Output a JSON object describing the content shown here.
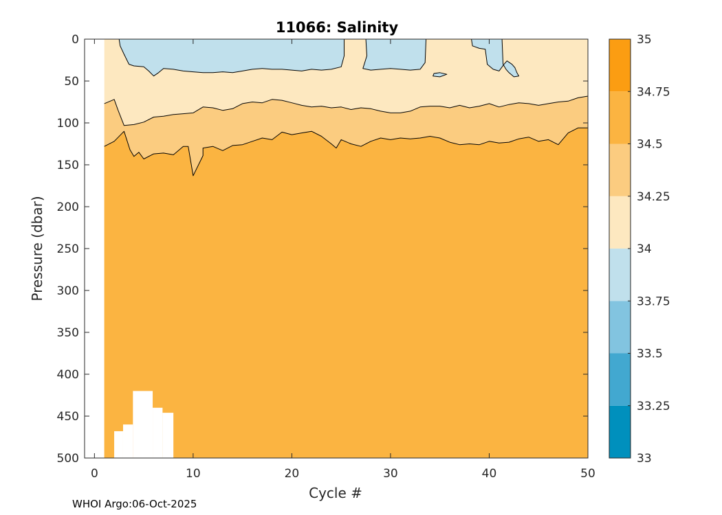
{
  "chart_data": {
    "type": "contour",
    "title": "11066:  Salinity",
    "xlabel": "Cycle #",
    "ylabel": "Pressure (dbar)",
    "xlim": [
      -1,
      50
    ],
    "ylim": [
      500,
      0
    ],
    "x_ticks": [
      0,
      10,
      20,
      30,
      40,
      50
    ],
    "y_ticks": [
      0,
      50,
      100,
      150,
      200,
      250,
      300,
      350,
      400,
      450,
      500
    ],
    "data_x_range": [
      1,
      50
    ],
    "colorbar": {
      "range": [
        33,
        35
      ],
      "ticks": [
        "33",
        "33.25",
        "33.5",
        "33.75",
        "34",
        "34.25",
        "34.5",
        "34.75",
        "35"
      ],
      "bins": [
        {
          "from": 33.0,
          "to": 33.25,
          "color": "#0090bd"
        },
        {
          "from": 33.25,
          "to": 33.5,
          "color": "#42a8d0"
        },
        {
          "from": 33.5,
          "to": 33.75,
          "color": "#82c4e0"
        },
        {
          "from": 33.75,
          "to": 34.0,
          "color": "#c0e0ec"
        },
        {
          "from": 34.0,
          "to": 34.25,
          "color": "#fde8c0"
        },
        {
          "from": 34.25,
          "to": 34.5,
          "color": "#fbcc80"
        },
        {
          "from": 34.5,
          "to": 34.75,
          "color": "#fbb441"
        },
        {
          "from": 34.75,
          "to": 35.0,
          "color": "#fb9d12"
        }
      ]
    },
    "contour_bands": [
      {
        "name": "deep-34.5-34.75",
        "color": "#fbb441",
        "boundary": [
          [
            1,
            128
          ],
          [
            2,
            122
          ],
          [
            3,
            110
          ],
          [
            3.6,
            132
          ],
          [
            4,
            140
          ],
          [
            4.5,
            135
          ],
          [
            5,
            143
          ],
          [
            6,
            137
          ],
          [
            7,
            136
          ],
          [
            8,
            138
          ],
          [
            9,
            128
          ],
          [
            9.5,
            128
          ],
          [
            10,
            163
          ],
          [
            11,
            139
          ],
          [
            11,
            130
          ],
          [
            12,
            128
          ],
          [
            13,
            133
          ],
          [
            14,
            127
          ],
          [
            15,
            126
          ],
          [
            16,
            122
          ],
          [
            17,
            118
          ],
          [
            18,
            120
          ],
          [
            19,
            111
          ],
          [
            20,
            114
          ],
          [
            21,
            112
          ],
          [
            22,
            110
          ],
          [
            23,
            116
          ],
          [
            24,
            125
          ],
          [
            24.5,
            130
          ],
          [
            25,
            120
          ],
          [
            26,
            125
          ],
          [
            27,
            128
          ],
          [
            28,
            122
          ],
          [
            29,
            118
          ],
          [
            30,
            120
          ],
          [
            31,
            118
          ],
          [
            32,
            119
          ],
          [
            33,
            118
          ],
          [
            34,
            116
          ],
          [
            35,
            118
          ],
          [
            36,
            123
          ],
          [
            37,
            126
          ],
          [
            38,
            125
          ],
          [
            39,
            126
          ],
          [
            40,
            122
          ],
          [
            41,
            124
          ],
          [
            42,
            123
          ],
          [
            43,
            119
          ],
          [
            44,
            117
          ],
          [
            45,
            122
          ],
          [
            46,
            120
          ],
          [
            47,
            126
          ],
          [
            48,
            112
          ],
          [
            49,
            106
          ],
          [
            50,
            106
          ]
        ]
      },
      {
        "name": "band-34.25-34.5",
        "color": "#fbcc80",
        "boundary": [
          [
            1,
            77
          ],
          [
            2,
            72
          ],
          [
            2.4,
            85
          ],
          [
            3,
            103
          ],
          [
            4,
            102
          ],
          [
            5,
            99
          ],
          [
            6,
            93
          ],
          [
            7,
            92
          ],
          [
            8,
            90
          ],
          [
            9,
            89
          ],
          [
            10,
            88
          ],
          [
            11,
            81
          ],
          [
            12,
            82
          ],
          [
            13,
            85
          ],
          [
            14,
            83
          ],
          [
            15,
            77
          ],
          [
            16,
            75
          ],
          [
            17,
            76
          ],
          [
            18,
            72
          ],
          [
            19,
            73
          ],
          [
            20,
            76
          ],
          [
            21,
            79
          ],
          [
            22,
            81
          ],
          [
            23,
            80
          ],
          [
            24,
            82
          ],
          [
            25,
            81
          ],
          [
            26,
            84
          ],
          [
            27,
            82
          ],
          [
            28,
            83
          ],
          [
            29,
            86
          ],
          [
            30,
            88
          ],
          [
            31,
            88
          ],
          [
            32,
            86
          ],
          [
            33,
            81
          ],
          [
            34,
            80
          ],
          [
            35,
            80
          ],
          [
            36,
            82
          ],
          [
            37,
            79
          ],
          [
            38,
            82
          ],
          [
            39,
            80
          ],
          [
            40,
            77
          ],
          [
            41,
            81
          ],
          [
            42,
            78
          ],
          [
            43,
            76
          ],
          [
            44,
            77
          ],
          [
            45,
            79
          ],
          [
            46,
            77
          ],
          [
            47,
            75
          ],
          [
            48,
            74
          ],
          [
            49,
            70
          ],
          [
            50,
            68
          ]
        ]
      },
      {
        "name": "band-34.0-34.25",
        "color": "#fde8c0",
        "boundary": [
          [
            1,
            0
          ],
          [
            50,
            0
          ]
        ]
      },
      {
        "name": "fresh-33.75-34.0",
        "color": "#c0e0ec",
        "boundary": [
          [
            2.5,
            0
          ],
          [
            2.6,
            8
          ],
          [
            3,
            18
          ],
          [
            3.5,
            30
          ],
          [
            4,
            32
          ],
          [
            5,
            33
          ],
          [
            5.5,
            38
          ],
          [
            6,
            44
          ],
          [
            6.5,
            40
          ],
          [
            7,
            35
          ],
          [
            8,
            36
          ],
          [
            9,
            38
          ],
          [
            10,
            39
          ],
          [
            11,
            40
          ],
          [
            12,
            40
          ],
          [
            13,
            39
          ],
          [
            14,
            40
          ],
          [
            15,
            38
          ],
          [
            16,
            36
          ],
          [
            17,
            35
          ],
          [
            18,
            36
          ],
          [
            19,
            36
          ],
          [
            20,
            37
          ],
          [
            21,
            38
          ],
          [
            22,
            36
          ],
          [
            23,
            37
          ],
          [
            24,
            36
          ],
          [
            25,
            33
          ],
          [
            25.3,
            20
          ],
          [
            25.3,
            0
          ],
          [
            27.5,
            0
          ],
          [
            27.6,
            20
          ],
          [
            27.2,
            35
          ],
          [
            28,
            37
          ],
          [
            29,
            36
          ],
          [
            30,
            35
          ],
          [
            31,
            36
          ],
          [
            32,
            37
          ],
          [
            33,
            36
          ],
          [
            33.5,
            28
          ],
          [
            33.6,
            0
          ]
        ]
      },
      {
        "name": "fresh-patch-right",
        "color": "#c0e0ec",
        "boundary": [
          [
            38.2,
            0
          ],
          [
            38.3,
            8
          ],
          [
            39,
            11
          ],
          [
            39.6,
            12
          ],
          [
            39.8,
            30
          ],
          [
            40.4,
            36
          ],
          [
            41,
            38
          ],
          [
            41.5,
            30
          ],
          [
            41.8,
            26
          ],
          [
            42.3,
            30
          ],
          [
            42.6,
            34
          ],
          [
            42.8,
            40
          ],
          [
            43,
            44
          ],
          [
            42.5,
            45
          ],
          [
            42,
            40
          ],
          [
            41.7,
            36
          ],
          [
            41.4,
            30
          ],
          [
            41.3,
            0
          ]
        ]
      },
      {
        "name": "fresh-patch-small",
        "color": "#c0e0ec",
        "boundary": [
          [
            34.4,
            41
          ],
          [
            35,
            40
          ],
          [
            35.7,
            42
          ],
          [
            35,
            45
          ],
          [
            34.3,
            44
          ]
        ]
      }
    ],
    "missing_data": [
      {
        "x": [
          1,
          2
        ],
        "p": [
          500,
          500
        ]
      },
      {
        "x": [
          2,
          2.9
        ],
        "p": [
          468,
          500
        ]
      },
      {
        "x": [
          2.9,
          3.9
        ],
        "p": [
          460,
          500
        ]
      },
      {
        "x": [
          3.9,
          5.9
        ],
        "p": [
          420,
          500
        ]
      },
      {
        "x": [
          5.9,
          6.9
        ],
        "p": [
          440,
          500
        ]
      },
      {
        "x": [
          6.9,
          8
        ],
        "p": [
          446,
          500
        ]
      }
    ],
    "footer": "WHOI Argo:06-Oct-2025"
  }
}
